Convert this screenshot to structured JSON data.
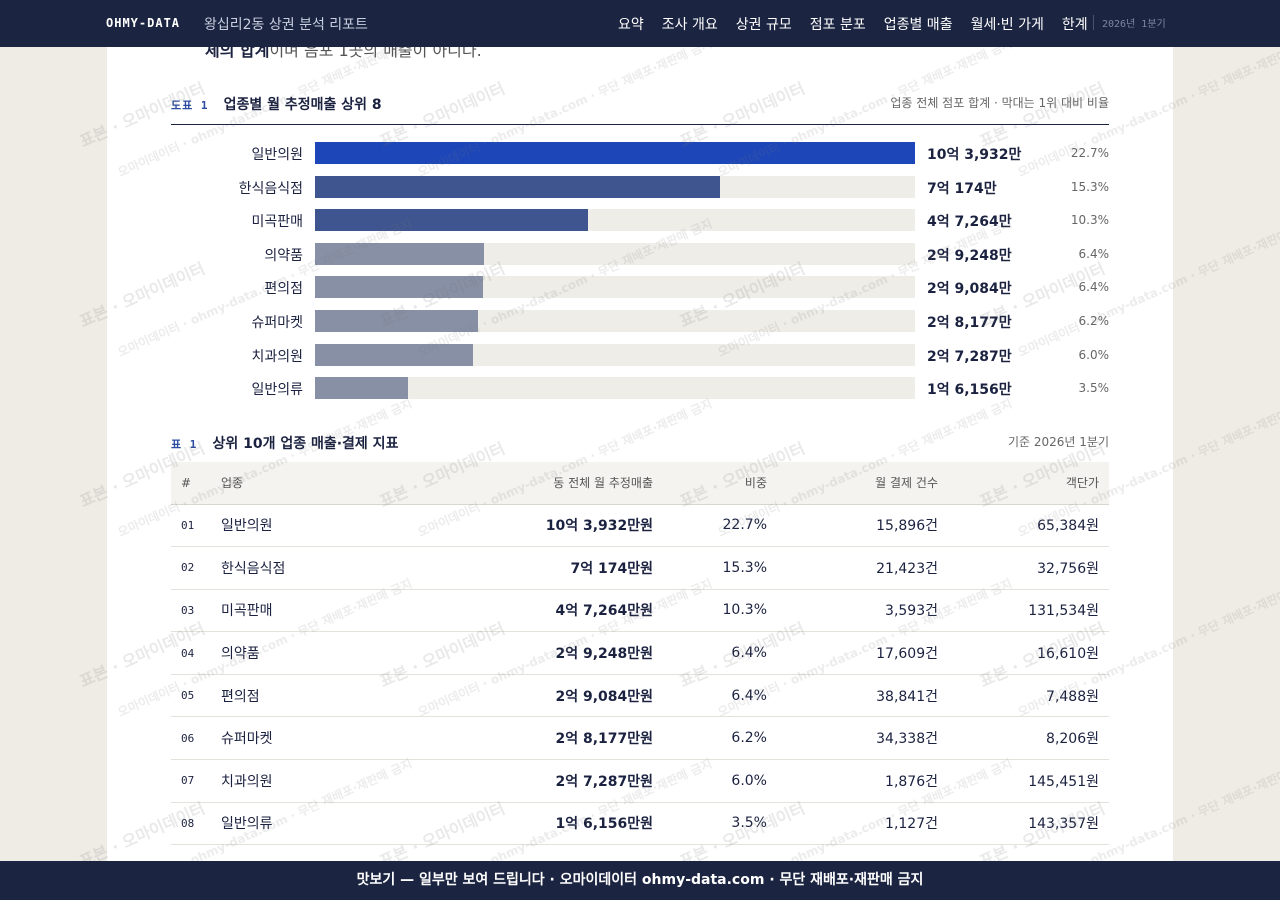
{
  "header": {
    "brand": "OHMY-DATA",
    "report_title": "왕십리2동 상권 분석 리포트",
    "nav": [
      "요약",
      "조사 개요",
      "상권 규모",
      "점포 분포",
      "업종별 매출",
      "월세·빈 가게",
      "한계"
    ],
    "period": "2026년 1분기"
  },
  "intro_cut": {
    "bold": "체의 합계",
    "rest": "이며 음포 1곳의 매출이 아니다."
  },
  "figure": {
    "tag": "도표 1",
    "title": "업종별 월 추정매출 상위 8",
    "note": "업종 전체 점포 합계 · 막대는 1위 대비 비율"
  },
  "chart_data": {
    "type": "bar",
    "orientation": "horizontal",
    "title": "업종별 월 추정매출 상위 8",
    "categories": [
      "일반의원",
      "한식음식점",
      "미곡판매",
      "의약품",
      "편의점",
      "슈퍼마켓",
      "치과의원",
      "일반의류"
    ],
    "values": [
      10.3932,
      7.0174,
      4.7264,
      2.9248,
      2.9084,
      2.8177,
      2.7287,
      1.6156
    ],
    "value_labels": [
      "10억 3,932만",
      "7억 174만",
      "4억 7,264만",
      "2억 9,248만",
      "2억 9,084만",
      "2억 8,177만",
      "2억 7,287만",
      "1억 6,156만"
    ],
    "shares": [
      "22.7%",
      "15.3%",
      "10.3%",
      "6.4%",
      "6.4%",
      "6.2%",
      "6.0%",
      "3.5%"
    ],
    "xlim": [
      0,
      10.3932
    ],
    "colors": [
      "#1d46b8",
      "#3f5590",
      "#3f5590",
      "#8890a6",
      "#8890a6",
      "#8890a6",
      "#8890a6",
      "#8890a6"
    ],
    "track_color": "#efede7"
  },
  "table": {
    "tag": "표 1",
    "title": "상위 10개 업종 매출·결제 지표",
    "note": "기준 2026년 1분기",
    "columns": [
      "#",
      "업종",
      "동 전체 월 추정매출",
      "비중",
      "월 결제 건수",
      "객단가"
    ],
    "rows": [
      {
        "no": "01",
        "name": "일반의원",
        "sales": "10억 3,932만원",
        "share": "22.7%",
        "count": "15,896건",
        "avg": "65,384원"
      },
      {
        "no": "02",
        "name": "한식음식점",
        "sales": "7억 174만원",
        "share": "15.3%",
        "count": "21,423건",
        "avg": "32,756원"
      },
      {
        "no": "03",
        "name": "미곡판매",
        "sales": "4억 7,264만원",
        "share": "10.3%",
        "count": "3,593건",
        "avg": "131,534원"
      },
      {
        "no": "04",
        "name": "의약품",
        "sales": "2억 9,248만원",
        "share": "6.4%",
        "count": "17,609건",
        "avg": "16,610원"
      },
      {
        "no": "05",
        "name": "편의점",
        "sales": "2억 9,084만원",
        "share": "6.4%",
        "count": "38,841건",
        "avg": "7,488원"
      },
      {
        "no": "06",
        "name": "슈퍼마켓",
        "sales": "2억 8,177만원",
        "share": "6.2%",
        "count": "34,338건",
        "avg": "8,206원"
      },
      {
        "no": "07",
        "name": "치과의원",
        "sales": "2억 7,287만원",
        "share": "6.0%",
        "count": "1,876건",
        "avg": "145,451원"
      },
      {
        "no": "08",
        "name": "일반의류",
        "sales": "1억 6,156만원",
        "share": "3.5%",
        "count": "1,127건",
        "avg": "143,357원"
      }
    ]
  },
  "watermark": {
    "main": "표본 · 오마이데이터",
    "site": "오마이데이터 · ohmy-data.com · 무단 재배포·재판매 금지"
  },
  "footer": {
    "text": "맛보기 — 일부만 보여 드립니다 · 오마이데이터 ohmy-data.com · 무단 재배포·재판매 금지"
  }
}
